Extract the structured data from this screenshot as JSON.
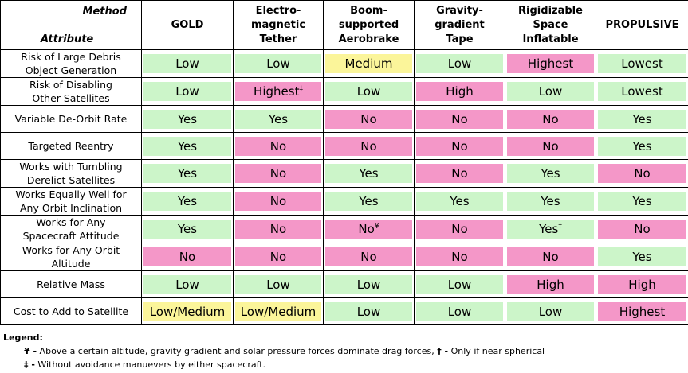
{
  "header": {
    "method_label": "Method",
    "attribute_label": "Attribute",
    "columns": [
      [
        "GOLD"
      ],
      [
        "Electro-",
        "magnetic",
        "Tether"
      ],
      [
        "Boom-",
        "supported",
        "Aerobrake"
      ],
      [
        "Gravity-",
        "gradient",
        "Tape"
      ],
      [
        "Rigidizable",
        "Space",
        "Inflatable"
      ],
      [
        "PROPULSIVE"
      ]
    ]
  },
  "rows": [
    {
      "attribute": [
        "Risk of Large Debris",
        "Object Generation"
      ],
      "cells": [
        {
          "v": "Low",
          "c": "g"
        },
        {
          "v": "Low",
          "c": "g"
        },
        {
          "v": "Medium",
          "c": "y"
        },
        {
          "v": "Low",
          "c": "g"
        },
        {
          "v": "Highest",
          "c": "p"
        },
        {
          "v": "Lowest",
          "c": "g"
        }
      ]
    },
    {
      "attribute": [
        "Risk of Disabling",
        "Other Satellites"
      ],
      "cells": [
        {
          "v": "Low",
          "c": "g"
        },
        {
          "v": "Highest",
          "c": "p",
          "sup": "‡"
        },
        {
          "v": "Low",
          "c": "g"
        },
        {
          "v": "High",
          "c": "p"
        },
        {
          "v": "Low",
          "c": "g"
        },
        {
          "v": "Lowest",
          "c": "g"
        }
      ]
    },
    {
      "attribute": [
        "Variable De-Orbit Rate"
      ],
      "cells": [
        {
          "v": "Yes",
          "c": "g"
        },
        {
          "v": "Yes",
          "c": "g"
        },
        {
          "v": "No",
          "c": "p"
        },
        {
          "v": "No",
          "c": "p"
        },
        {
          "v": "No",
          "c": "p"
        },
        {
          "v": "Yes",
          "c": "g"
        }
      ]
    },
    {
      "attribute": [
        "Targeted Reentry"
      ],
      "cells": [
        {
          "v": "Yes",
          "c": "g"
        },
        {
          "v": "No",
          "c": "p"
        },
        {
          "v": "No",
          "c": "p"
        },
        {
          "v": "No",
          "c": "p"
        },
        {
          "v": "No",
          "c": "p"
        },
        {
          "v": "Yes",
          "c": "g"
        }
      ]
    },
    {
      "attribute": [
        "Works with Tumbling",
        "Derelict Satellites"
      ],
      "cells": [
        {
          "v": "Yes",
          "c": "g"
        },
        {
          "v": "No",
          "c": "p"
        },
        {
          "v": "Yes",
          "c": "g"
        },
        {
          "v": "No",
          "c": "p"
        },
        {
          "v": "Yes",
          "c": "g"
        },
        {
          "v": "No",
          "c": "p"
        }
      ]
    },
    {
      "attribute": [
        "Works Equally Well for",
        "Any Orbit Inclination"
      ],
      "cells": [
        {
          "v": "Yes",
          "c": "g"
        },
        {
          "v": "No",
          "c": "p"
        },
        {
          "v": "Yes",
          "c": "g"
        },
        {
          "v": "Yes",
          "c": "g"
        },
        {
          "v": "Yes",
          "c": "g"
        },
        {
          "v": "Yes",
          "c": "g"
        }
      ]
    },
    {
      "attribute": [
        "Works for Any",
        "Spacecraft Attitude"
      ],
      "cells": [
        {
          "v": "Yes",
          "c": "g"
        },
        {
          "v": "No",
          "c": "p"
        },
        {
          "v": "No",
          "c": "p",
          "sup": "¥"
        },
        {
          "v": "No",
          "c": "p"
        },
        {
          "v": "Yes",
          "c": "g",
          "sup": "†"
        },
        {
          "v": "No",
          "c": "p"
        }
      ]
    },
    {
      "attribute": [
        "Works for Any Orbit",
        "Altitude"
      ],
      "cells": [
        {
          "v": "No",
          "c": "p"
        },
        {
          "v": "No",
          "c": "p"
        },
        {
          "v": "No",
          "c": "p"
        },
        {
          "v": "No",
          "c": "p"
        },
        {
          "v": "No",
          "c": "p"
        },
        {
          "v": "Yes",
          "c": "g"
        }
      ]
    },
    {
      "attribute": [
        "Relative Mass"
      ],
      "cells": [
        {
          "v": "Low",
          "c": "g"
        },
        {
          "v": "Low",
          "c": "g"
        },
        {
          "v": "Low",
          "c": "g"
        },
        {
          "v": "Low",
          "c": "g"
        },
        {
          "v": "High",
          "c": "p"
        },
        {
          "v": "High",
          "c": "p"
        }
      ]
    },
    {
      "attribute": [
        "Cost to Add to Satellite"
      ],
      "cells": [
        {
          "v": "Low/Medium",
          "c": "y"
        },
        {
          "v": "Low/Medium",
          "c": "y"
        },
        {
          "v": "Low",
          "c": "g"
        },
        {
          "v": "Low",
          "c": "g"
        },
        {
          "v": "Low",
          "c": "g"
        },
        {
          "v": "Highest",
          "c": "p"
        }
      ]
    }
  ],
  "legend": {
    "title": "Legend:",
    "line1_sym1": "¥ -",
    "line1_text1": " Above a certain altitude, gravity gradient and solar pressure forces dominate drag forces, ",
    "line1_sym2": "† -",
    "line1_text2": " Only if near spherical",
    "line2_sym": "‡ -",
    "line2_text": " Without avoidance manuevers by either spacecraft."
  },
  "colors": {
    "green": "#ccf5c9",
    "pink": "#f497c8",
    "yellow": "#fbf59a"
  }
}
